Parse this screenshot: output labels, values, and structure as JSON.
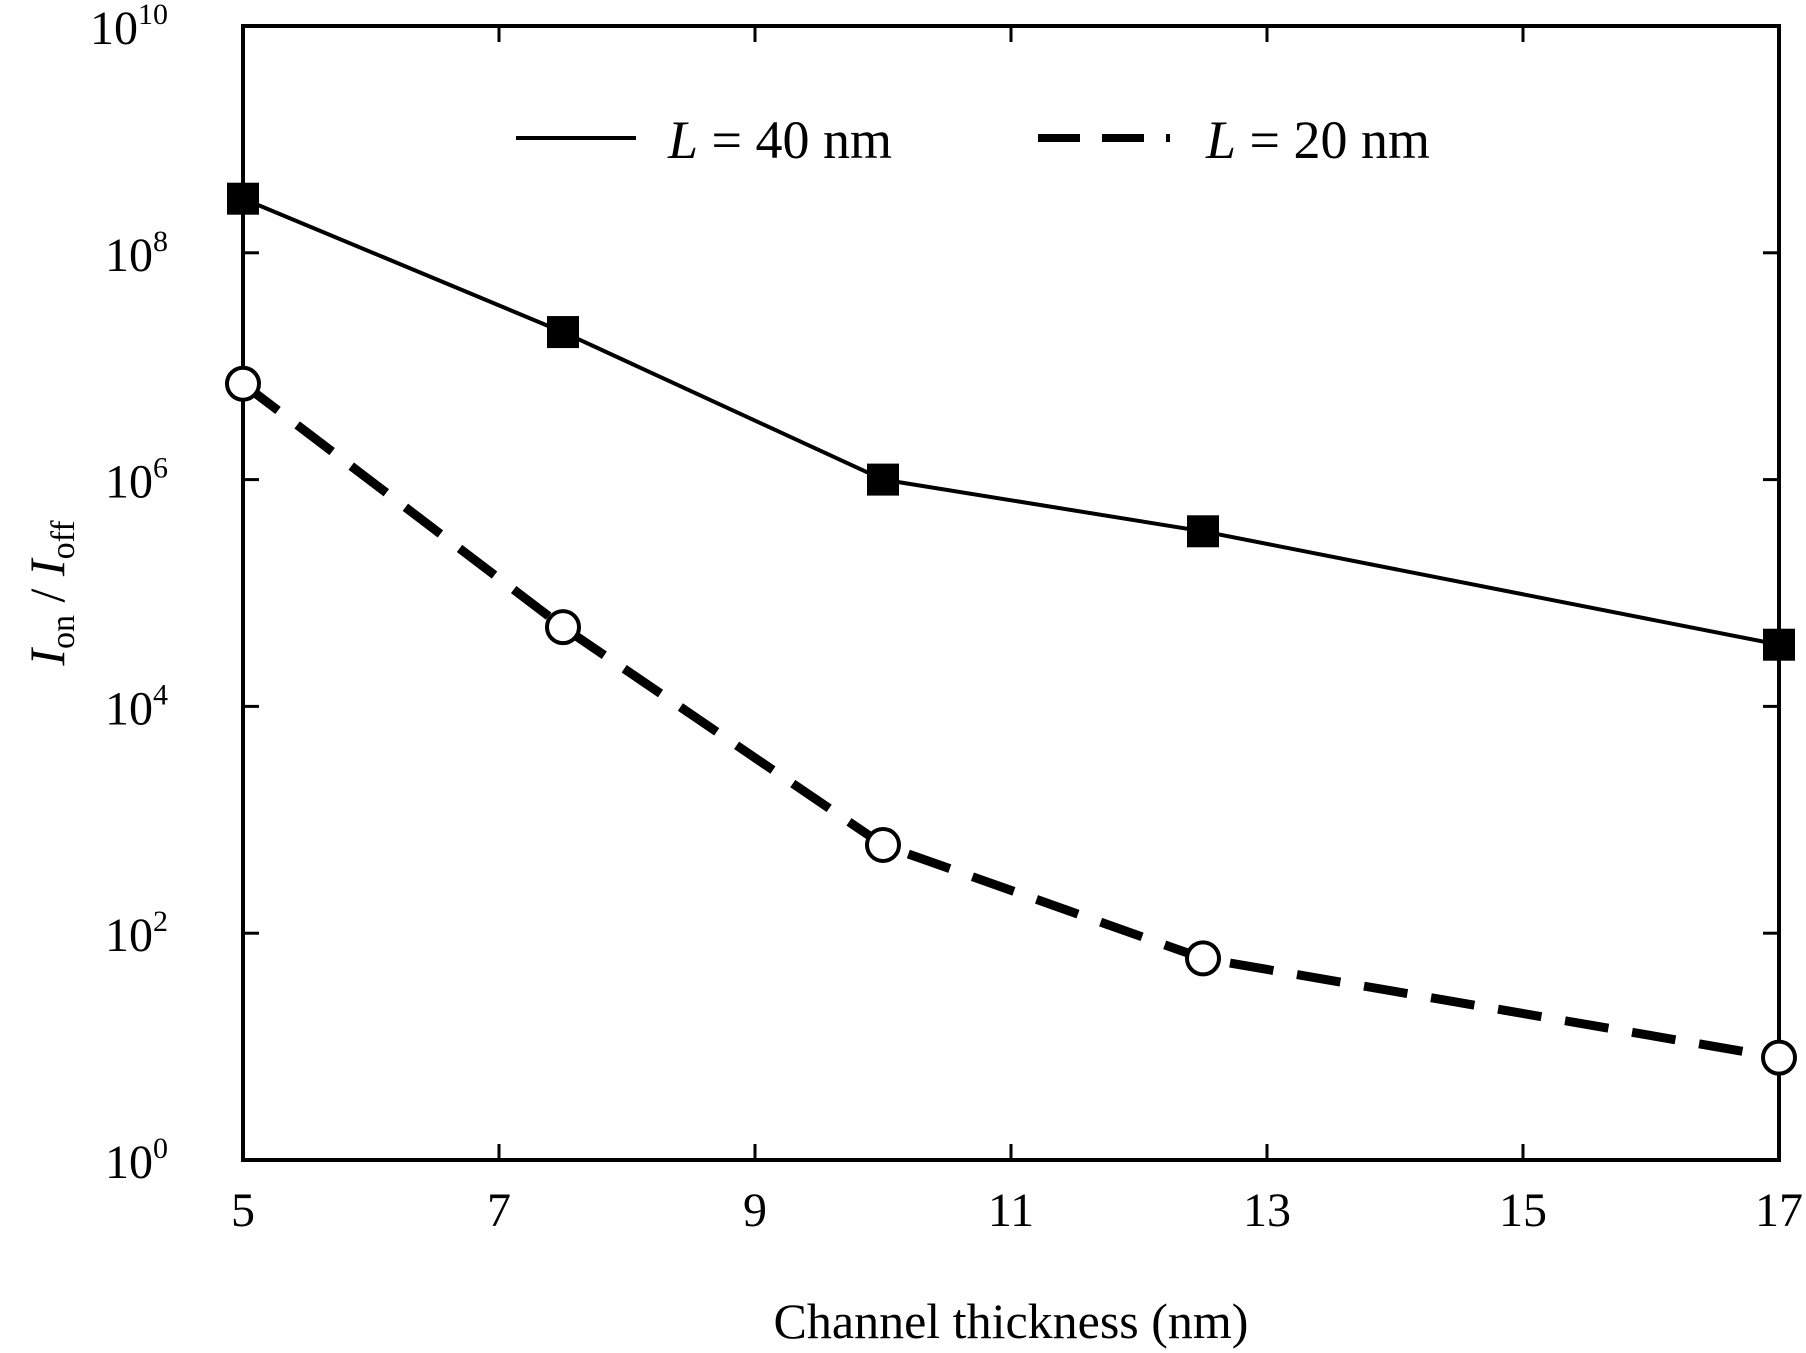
{
  "chart_data": {
    "type": "line",
    "xlabel": "Channel thickness (nm)",
    "ylabel": {
      "var1": "I",
      "sub1": "on",
      "sep": " / ",
      "var2": "I",
      "sub2": "off"
    },
    "xlim": [
      5,
      17
    ],
    "xticks": [
      5,
      7,
      9,
      11,
      13,
      15,
      17
    ],
    "yscale": "log",
    "ylim": [
      1,
      10000000000
    ],
    "yticks": [
      {
        "base": "10",
        "exp": "0",
        "value": 1
      },
      {
        "base": "10",
        "exp": "2",
        "value": 100
      },
      {
        "base": "10",
        "exp": "4",
        "value": 10000
      },
      {
        "base": "10",
        "exp": "6",
        "value": 1000000
      },
      {
        "base": "10",
        "exp": "8",
        "value": 100000000
      },
      {
        "base": "10",
        "exp": "10",
        "value": 10000000000
      }
    ],
    "grid": false,
    "legend_position": "top",
    "series": [
      {
        "name": {
          "var": "L",
          "rest": " = 40 nm"
        },
        "style": "solid",
        "marker": "filled-square",
        "color": "#000000",
        "x": [
          5,
          7.5,
          10,
          12.5,
          17
        ],
        "y": [
          300000000,
          20000000,
          1000000,
          350000,
          35000
        ]
      },
      {
        "name": {
          "var": "L",
          "rest": " = 20 nm"
        },
        "style": "dashed",
        "marker": "open-circle",
        "color": "#000000",
        "x": [
          5,
          7.5,
          10,
          12.5,
          17
        ],
        "y": [
          7000000,
          50000,
          600,
          60,
          8
        ]
      }
    ]
  }
}
